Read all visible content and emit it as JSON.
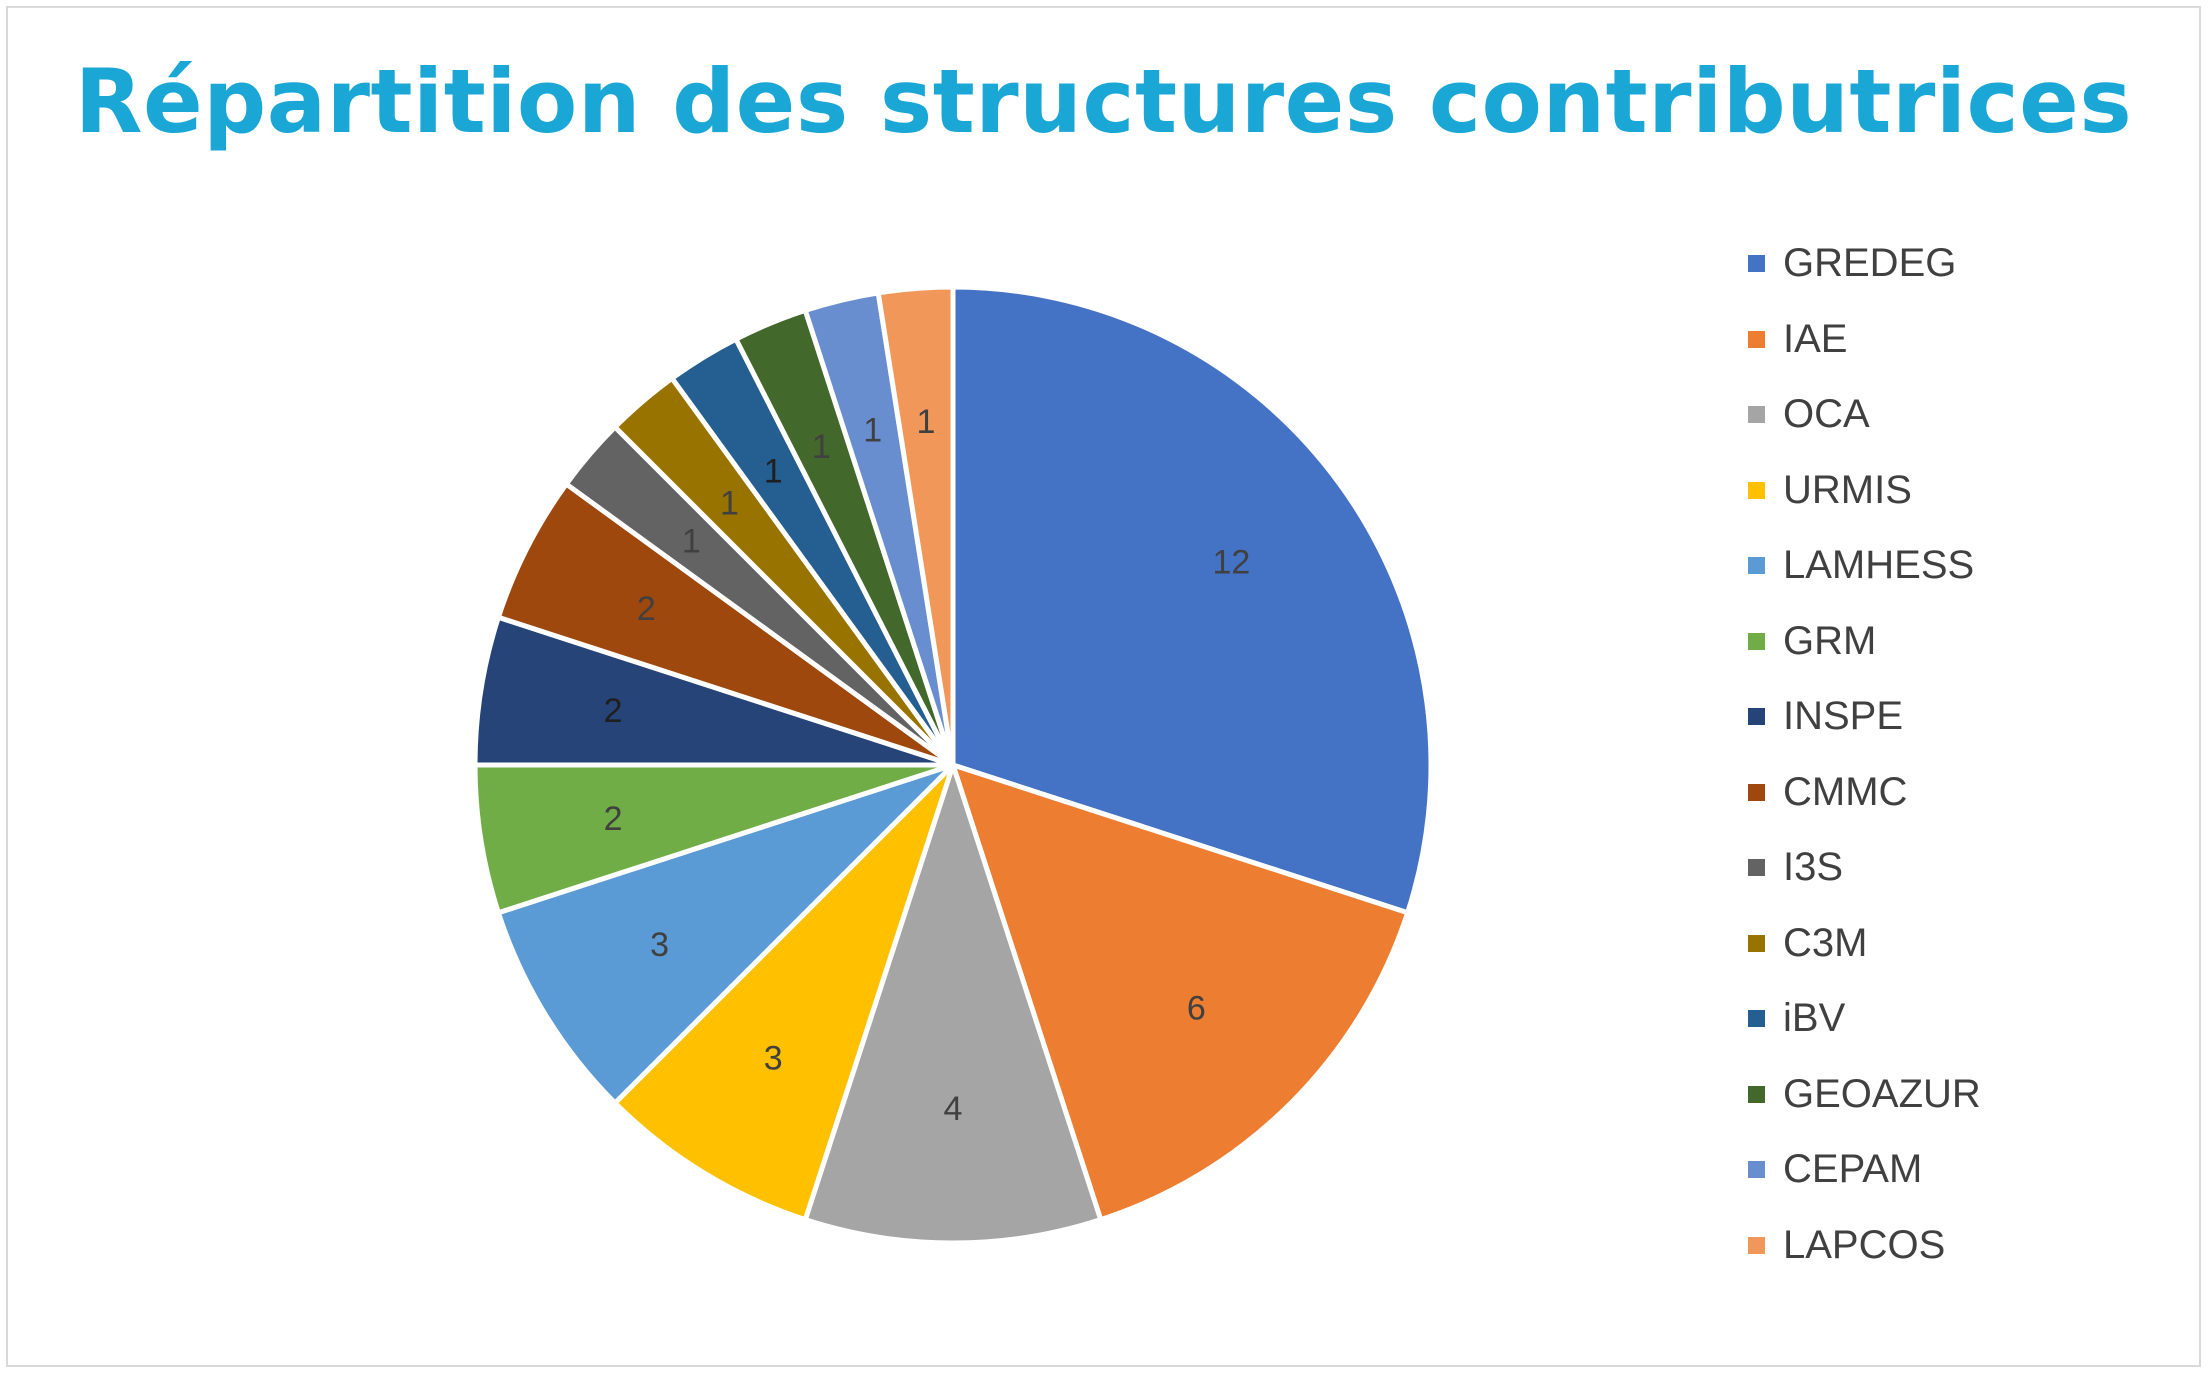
{
  "chart_data": {
    "type": "pie",
    "title": "Répartition des structures contributrices",
    "categories": [
      "GREDEG",
      "IAE",
      "OCA",
      "URMIS",
      "LAMHESS",
      "GRM",
      "INSPE",
      "CMMC",
      "I3S",
      "C3M",
      "iBV",
      "GEOAZUR",
      "CEPAM",
      "LAPCOS"
    ],
    "values": [
      12,
      6,
      4,
      3,
      3,
      2,
      2,
      2,
      1,
      1,
      1,
      1,
      1,
      1
    ],
    "colors": [
      "#4472C4",
      "#ED7D31",
      "#A5A5A5",
      "#FFC000",
      "#5B9BD5",
      "#70AD47",
      "#264478",
      "#9E480E",
      "#636363",
      "#997300",
      "#255E91",
      "#43682B",
      "#698ED0",
      "#F1975A"
    ],
    "data_labels": true,
    "legend_position": "right",
    "start_angle": "top",
    "direction": "clockwise"
  }
}
